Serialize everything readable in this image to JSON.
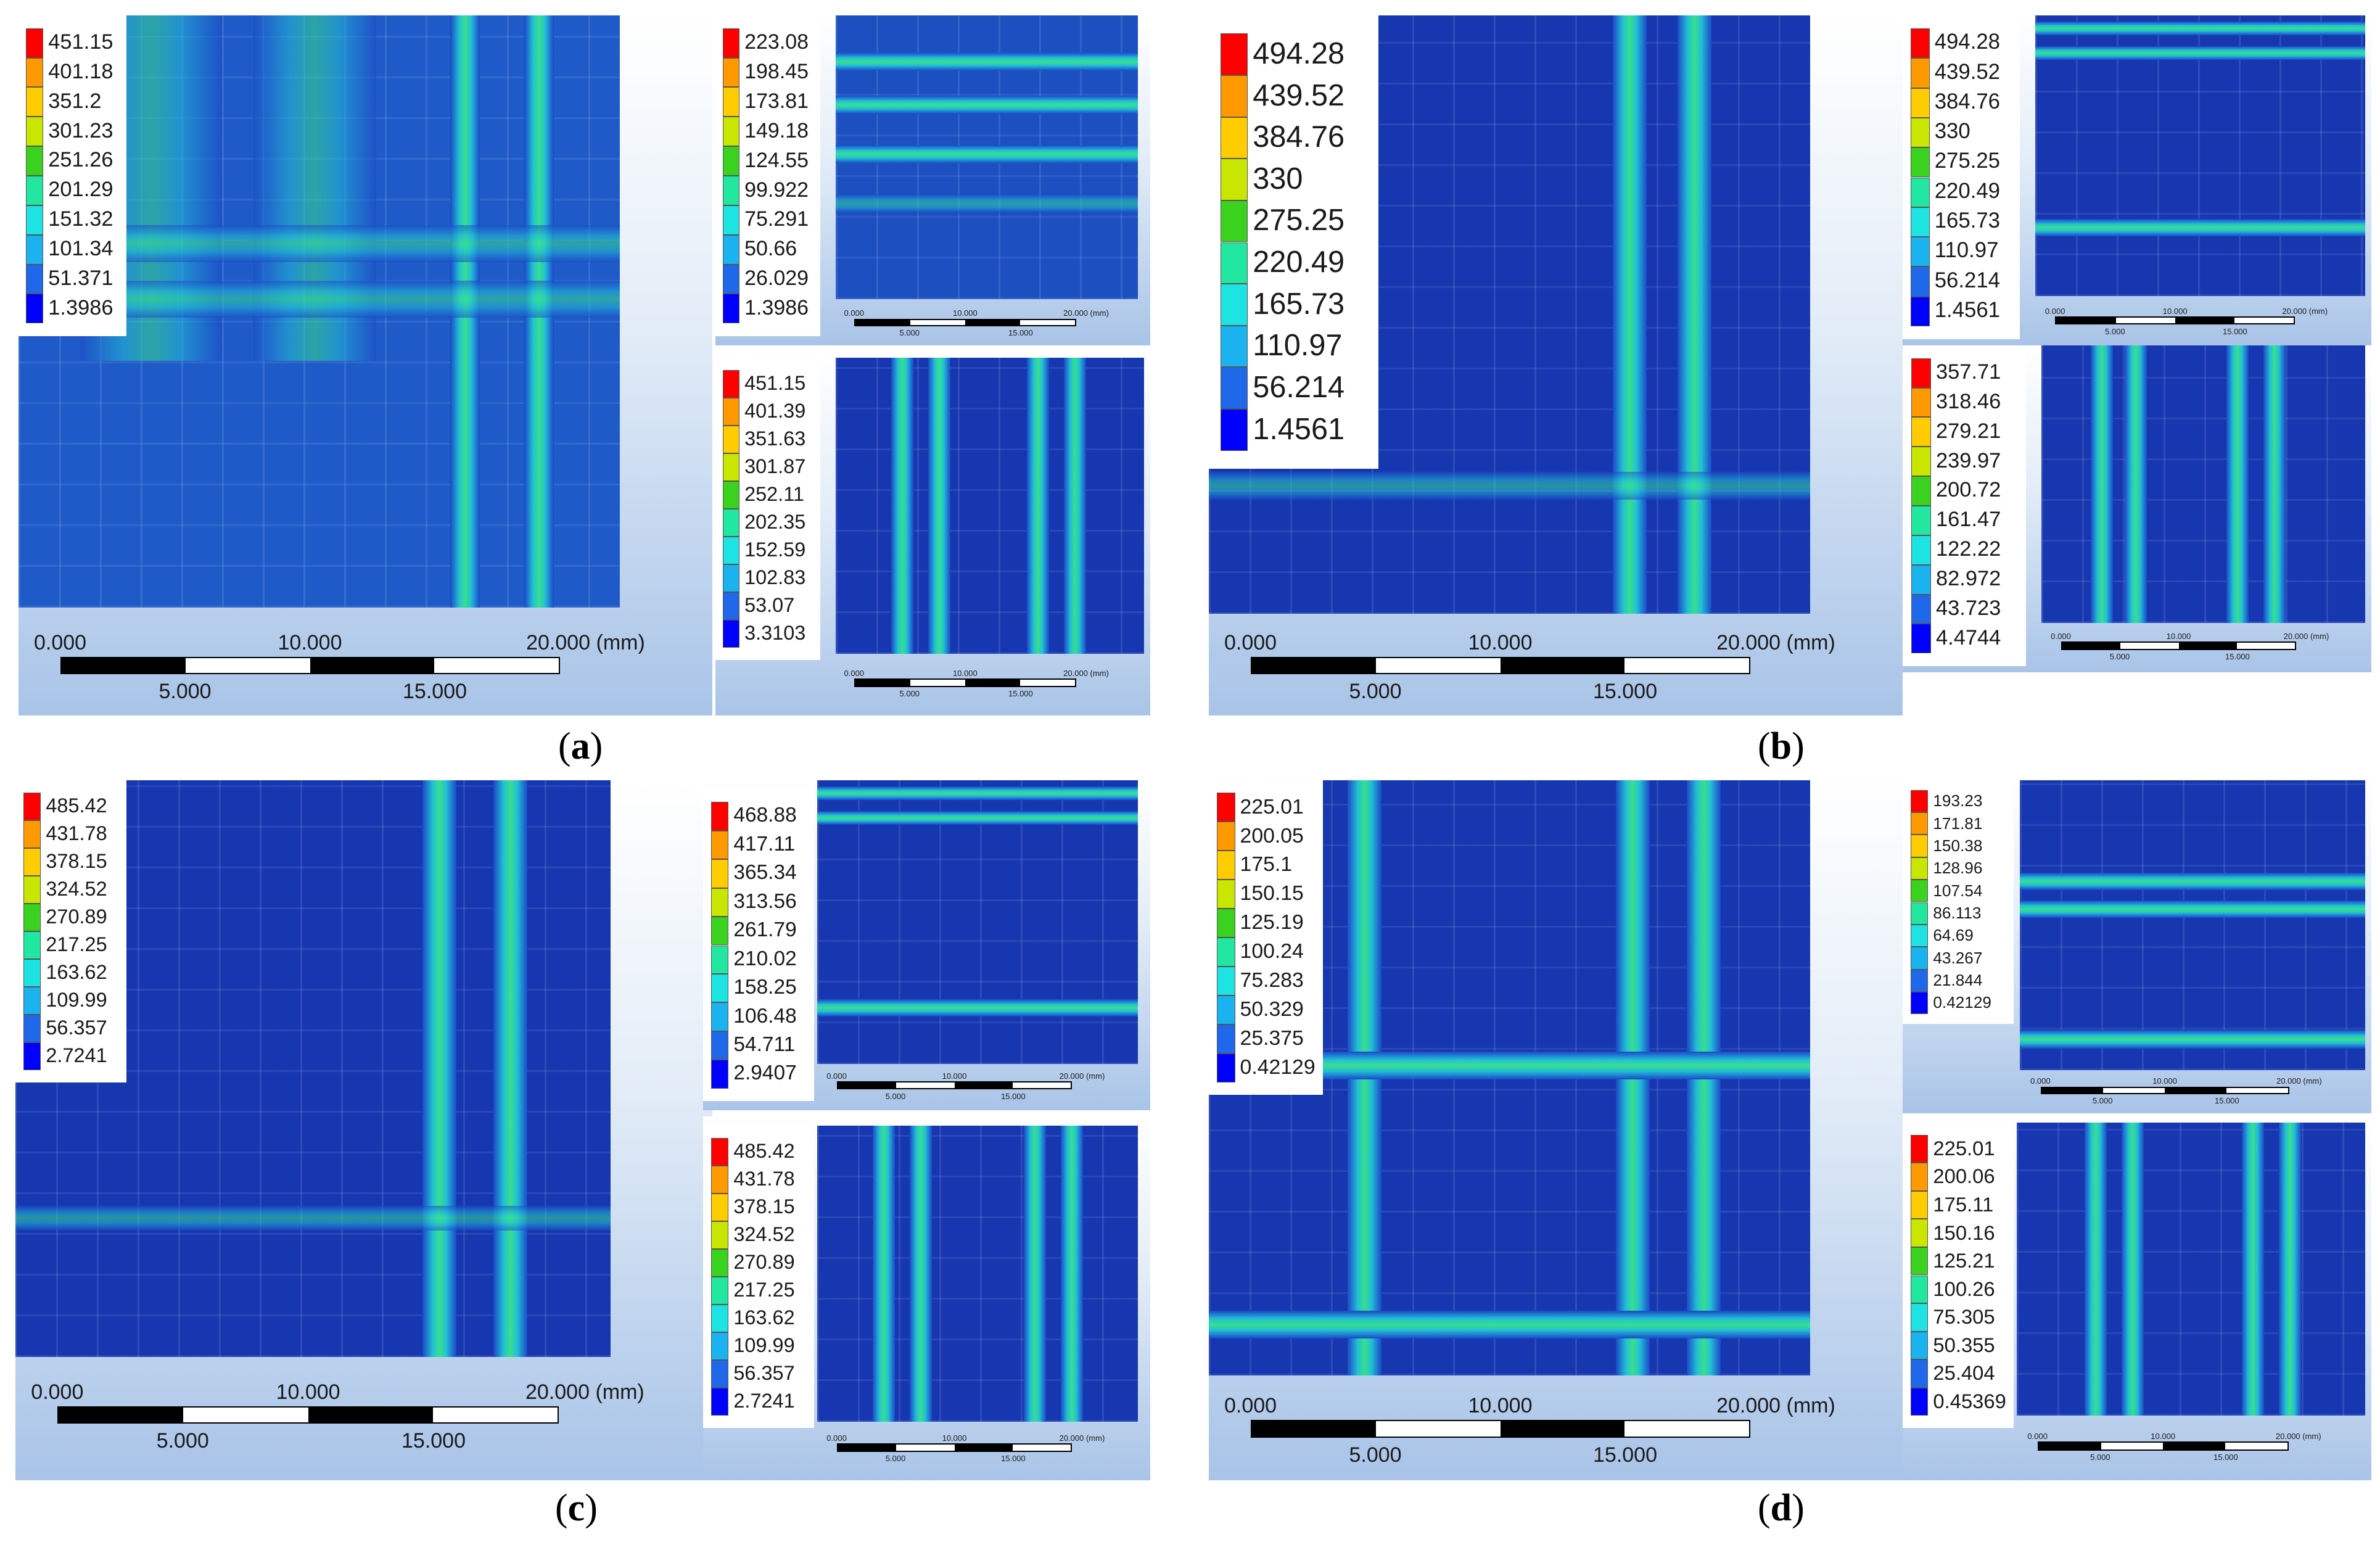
{
  "legend_colors": [
    "#ff0000",
    "#ff9900",
    "#ffcc00",
    "#c8e600",
    "#3ad11f",
    "#22e7a0",
    "#1de3e3",
    "#1ab3f0",
    "#1f68ea",
    "#0000ff"
  ],
  "figures": [
    {
      "caption_letter": "a",
      "main": {
        "legend": [
          "451.15",
          "401.18",
          "351.2",
          "301.23",
          "251.26",
          "201.29",
          "151.32",
          "101.34",
          "51.371",
          "1.3986"
        ],
        "scale": {
          "zero": "0.000",
          "mid": "10.000",
          "end": "20.000 (mm)",
          "q1": "5.000",
          "q3": "15.000"
        }
      },
      "inset_top": {
        "legend": [
          "223.08",
          "198.45",
          "173.81",
          "149.18",
          "124.55",
          "99.922",
          "75.291",
          "50.66",
          "26.029",
          "1.3986"
        ],
        "scale": {
          "zero": "0.000",
          "mid": "10.000",
          "end": "20.000 (mm)",
          "q1": "5.000",
          "q3": "15.000"
        }
      },
      "inset_bottom": {
        "legend": [
          "451.15",
          "401.39",
          "351.63",
          "301.87",
          "252.11",
          "202.35",
          "152.59",
          "102.83",
          "53.07",
          "3.3103"
        ],
        "scale": {
          "zero": "0.000",
          "mid": "10.000",
          "end": "20.000 (mm)",
          "q1": "5.000",
          "q3": "15.000"
        }
      }
    },
    {
      "caption_letter": "b",
      "main": {
        "legend": [
          "494.28",
          "439.52",
          "384.76",
          "330",
          "275.25",
          "220.49",
          "165.73",
          "110.97",
          "56.214",
          "1.4561"
        ],
        "scale": {
          "zero": "0.000",
          "mid": "10.000",
          "end": "20.000 (mm)",
          "q1": "5.000",
          "q3": "15.000"
        }
      },
      "inset_top": {
        "legend": [
          "494.28",
          "439.52",
          "384.76",
          "330",
          "275.25",
          "220.49",
          "165.73",
          "110.97",
          "56.214",
          "1.4561"
        ],
        "scale": {
          "zero": "0.000",
          "mid": "10.000",
          "end": "20.000 (mm)",
          "q1": "5.000",
          "q3": "15.000"
        }
      },
      "inset_bottom": {
        "legend": [
          "357.71",
          "318.46",
          "279.21",
          "239.97",
          "200.72",
          "161.47",
          "122.22",
          "82.972",
          "43.723",
          "4.4744"
        ],
        "scale": {
          "zero": "0.000",
          "mid": "10.000",
          "end": "20.000 (mm)",
          "q1": "5.000",
          "q3": "15.000"
        }
      }
    },
    {
      "caption_letter": "c",
      "main": {
        "legend": [
          "485.42",
          "431.78",
          "378.15",
          "324.52",
          "270.89",
          "217.25",
          "163.62",
          "109.99",
          "56.357",
          "2.7241"
        ],
        "scale": {
          "zero": "0.000",
          "mid": "10.000",
          "end": "20.000 (mm)",
          "q1": "5.000",
          "q3": "15.000"
        }
      },
      "inset_top": {
        "legend": [
          "468.88",
          "417.11",
          "365.34",
          "313.56",
          "261.79",
          "210.02",
          "158.25",
          "106.48",
          "54.711",
          "2.9407"
        ],
        "scale": {
          "zero": "0.000",
          "mid": "10.000",
          "end": "20.000 (mm)",
          "q1": "5.000",
          "q3": "15.000"
        }
      },
      "inset_bottom": {
        "legend": [
          "485.42",
          "431.78",
          "378.15",
          "324.52",
          "270.89",
          "217.25",
          "163.62",
          "109.99",
          "56.357",
          "2.7241"
        ],
        "scale": {
          "zero": "0.000",
          "mid": "10.000",
          "end": "20.000 (mm)",
          "q1": "5.000",
          "q3": "15.000"
        }
      }
    },
    {
      "caption_letter": "d",
      "main": {
        "legend": [
          "225.01",
          "200.05",
          "175.1",
          "150.15",
          "125.19",
          "100.24",
          "75.283",
          "50.329",
          "25.375",
          "0.42129"
        ],
        "scale": {
          "zero": "0.000",
          "mid": "10.000",
          "end": "20.000 (mm)",
          "q1": "5.000",
          "q3": "15.000"
        }
      },
      "inset_top": {
        "legend": [
          "193.23",
          "171.81",
          "150.38",
          "128.96",
          "107.54",
          "86.113",
          "64.69",
          "43.267",
          "21.844",
          "0.42129"
        ],
        "scale": {
          "zero": "0.000",
          "mid": "10.000",
          "end": "20.000 (mm)",
          "q1": "5.000",
          "q3": "15.000"
        }
      },
      "inset_bottom": {
        "legend": [
          "225.01",
          "200.06",
          "175.11",
          "150.16",
          "125.21",
          "100.26",
          "75.305",
          "50.355",
          "25.404",
          "0.45369"
        ],
        "scale": {
          "zero": "0.000",
          "mid": "10.000",
          "end": "20.000 (mm)",
          "q1": "5.000",
          "q3": "15.000"
        }
      }
    }
  ]
}
